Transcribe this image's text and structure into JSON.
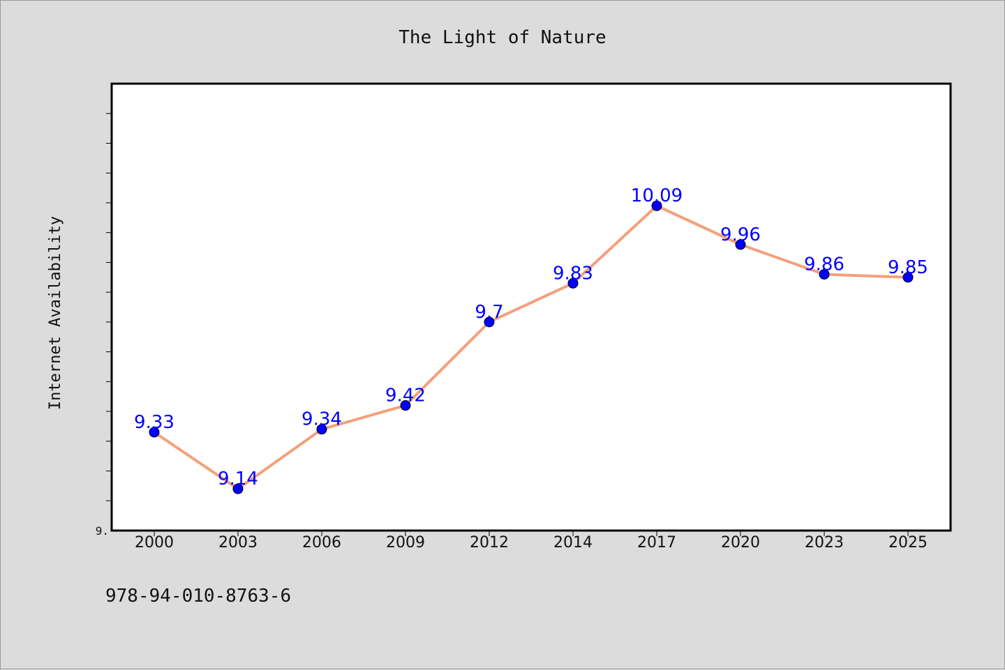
{
  "colors": {
    "background": "#dcdcdc",
    "plot_background": "#ffffff",
    "line": "#f4a07a",
    "marker": "#0000ff",
    "data_label": "#0000ff"
  },
  "footer_text": "978-94-010-8763-6",
  "chart_data": {
    "type": "line",
    "title": "The Light of Nature",
    "xlabel": "",
    "ylabel": "Internet Availability",
    "categories": [
      "2000",
      "2003",
      "2006",
      "2009",
      "2012",
      "2014",
      "2017",
      "2020",
      "2023",
      "2025"
    ],
    "series": [
      {
        "values": [
          9.33,
          9.14,
          9.34,
          9.42,
          9.7,
          9.83,
          10.09,
          9.96,
          9.86,
          9.85
        ]
      }
    ],
    "data_labels": [
      "9.33",
      "9.14",
      "9.34",
      "9.42",
      "9.7",
      "9.83",
      "10.09",
      "9.96",
      "9.86",
      "9.85"
    ],
    "ylim": [
      9.0,
      10.5
    ],
    "y_tick_label": "9.",
    "grid": false,
    "legend": "none"
  }
}
